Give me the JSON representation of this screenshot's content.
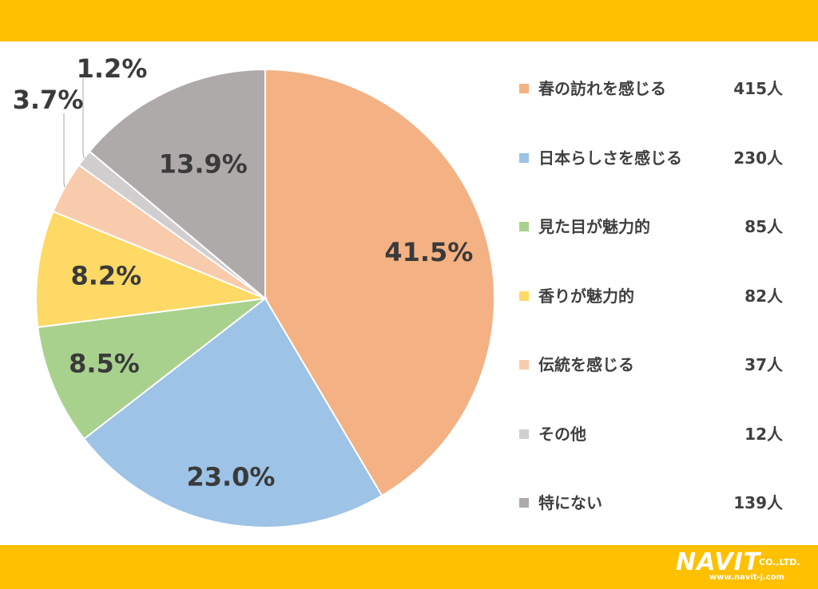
{
  "chart_data": {
    "type": "pie",
    "unit": "人",
    "start_angle_deg": 0,
    "direction": "clockwise",
    "slices": [
      {
        "label": "春の訪れを感じる",
        "count": 415,
        "percent": 41.5,
        "percent_label": "41.5%",
        "count_label": "415人",
        "color": "#F4B183"
      },
      {
        "label": "日本らしさを感じる",
        "count": 230,
        "percent": 23.0,
        "percent_label": "23.0%",
        "count_label": "230人",
        "color": "#9DC3E6"
      },
      {
        "label": "見た目が魅力的",
        "count": 85,
        "percent": 8.5,
        "percent_label": "8.5%",
        "count_label": "85人",
        "color": "#A9D18E"
      },
      {
        "label": "香りが魅力的",
        "count": 82,
        "percent": 8.2,
        "percent_label": "8.2%",
        "count_label": "82人",
        "color": "#FFD966"
      },
      {
        "label": "伝統を感じる",
        "count": 37,
        "percent": 3.7,
        "percent_label": "3.7%",
        "count_label": "37人",
        "color": "#F8CBAD"
      },
      {
        "label": "その他",
        "count": 12,
        "percent": 1.2,
        "percent_label": "1.2%",
        "count_label": "12人",
        "color": "#D0CECE"
      },
      {
        "label": "特にない",
        "count": 139,
        "percent": 13.9,
        "percent_label": "13.9%",
        "count_label": "139人",
        "color": "#AEAAAA"
      }
    ],
    "legend_position": "right",
    "label_color": "#3a3a3a"
  },
  "theme": {
    "band_color": "#FFC000",
    "background": "#ffffff"
  },
  "logo": {
    "main": "NAVIT",
    "company": "CO.,LTD.",
    "url": "www.navit-j.com"
  }
}
